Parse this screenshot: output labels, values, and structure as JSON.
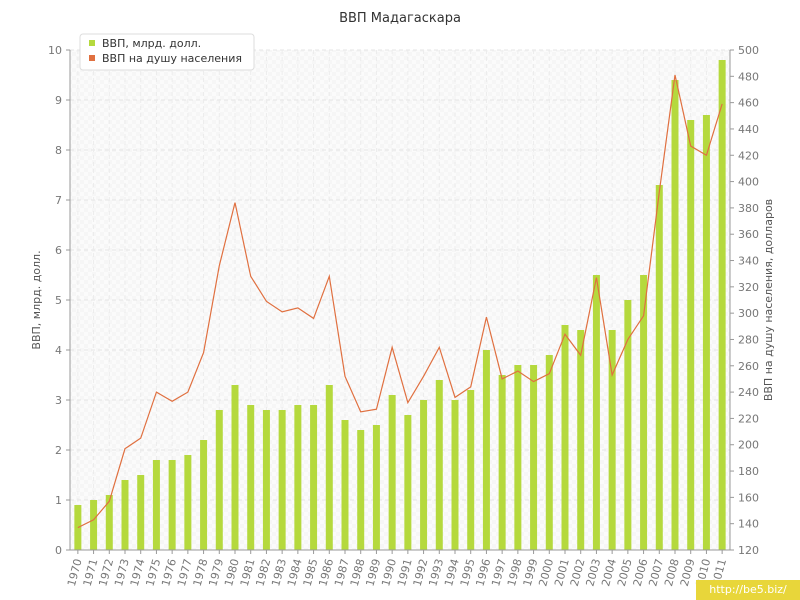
{
  "chart_data": {
    "type": "bar",
    "title": "ВВП Мадагаскара",
    "categories": [
      "1970",
      "1971",
      "1972",
      "1973",
      "1974",
      "1975",
      "1976",
      "1977",
      "1978",
      "1979",
      "1980",
      "1981",
      "1982",
      "1983",
      "1984",
      "1985",
      "1986",
      "1987",
      "1988",
      "1989",
      "1990",
      "1991",
      "1992",
      "1993",
      "1994",
      "1995",
      "1996",
      "1997",
      "1998",
      "1999",
      "2000",
      "2001",
      "2002",
      "2003",
      "2004",
      "2005",
      "2006",
      "2007",
      "2008",
      "2009",
      "2010",
      "2011"
    ],
    "series": [
      {
        "name": "ВВП, млрд. долл.",
        "type": "bar",
        "axis": "left",
        "color": "#b5d93d",
        "values": [
          0.9,
          1.0,
          1.1,
          1.4,
          1.5,
          1.8,
          1.8,
          1.9,
          2.2,
          2.8,
          3.3,
          2.9,
          2.8,
          2.8,
          2.9,
          2.9,
          3.3,
          2.6,
          2.4,
          2.5,
          3.1,
          2.7,
          3.0,
          3.4,
          3.0,
          3.2,
          4.0,
          3.5,
          3.7,
          3.7,
          3.9,
          4.5,
          4.4,
          5.5,
          4.4,
          5.0,
          5.5,
          7.3,
          9.4,
          8.6,
          8.7,
          9.8
        ]
      },
      {
        "name": "ВВП на душу населения",
        "type": "line",
        "axis": "right",
        "color": "#e07040",
        "values": [
          137,
          143,
          157,
          197,
          205,
          240,
          233,
          240,
          270,
          336,
          384,
          328,
          309,
          301,
          304,
          296,
          328,
          252,
          225,
          227,
          274,
          232,
          252,
          274,
          236,
          244,
          297,
          250,
          256,
          248,
          254,
          284,
          268,
          327,
          253,
          280,
          298,
          392,
          481,
          427,
          420,
          459
        ]
      }
    ],
    "ylabel": "ВВП, млрд. долл.",
    "y2label": "ВВП на душу населения, долларов",
    "ylim": [
      0,
      10
    ],
    "y2lim": [
      120,
      500
    ],
    "yticks": [
      "0",
      "1",
      "2",
      "3",
      "4",
      "5",
      "6",
      "7",
      "8",
      "9",
      "10"
    ],
    "y2ticks": [
      "120",
      "140",
      "160",
      "180",
      "200",
      "220",
      "240",
      "260",
      "280",
      "300",
      "320",
      "340",
      "360",
      "380",
      "400",
      "420",
      "440",
      "460",
      "480",
      "500"
    ],
    "grid": true,
    "legend": "top-left"
  },
  "watermark": "http://be5.biz/"
}
